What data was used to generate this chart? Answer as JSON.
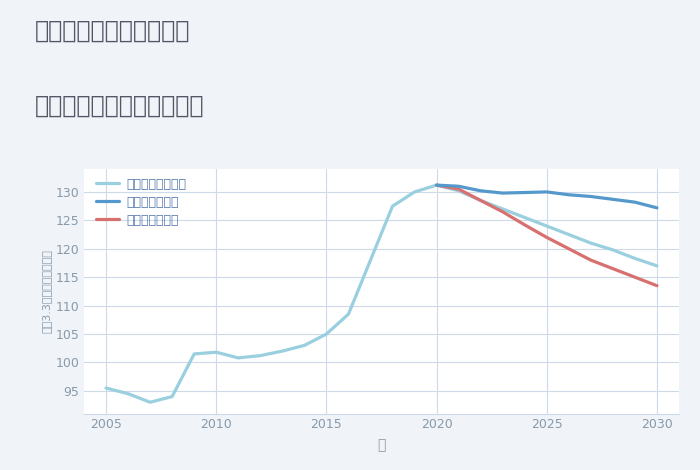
{
  "title_line1": "兵庫県姫路市北新在家の",
  "title_line2": "中古マンションの価格推移",
  "xlabel": "年",
  "ylabel": "坪（3.3㎡）単価（万円）",
  "background_color": "#f0f4f8",
  "plot_bg_color": "#ffffff",
  "xlim": [
    2004,
    2031
  ],
  "ylim": [
    91,
    134
  ],
  "yticks": [
    95,
    100,
    105,
    110,
    115,
    120,
    125,
    130
  ],
  "xticks": [
    2005,
    2010,
    2015,
    2020,
    2025,
    2030
  ],
  "good_scenario": {
    "label": "グッドシナリオ",
    "color": "#5599cc",
    "linewidth": 2.3,
    "years": [
      2020,
      2021,
      2022,
      2023,
      2024,
      2025,
      2026,
      2027,
      2028,
      2029,
      2030
    ],
    "values": [
      131.2,
      131.0,
      130.2,
      129.8,
      129.9,
      130.0,
      129.5,
      129.2,
      128.7,
      128.2,
      127.2
    ]
  },
  "bad_scenario": {
    "label": "バッドシナリオ",
    "color": "#d97070",
    "linewidth": 2.3,
    "years": [
      2020,
      2021,
      2022,
      2023,
      2024,
      2025,
      2026,
      2027,
      2028,
      2029,
      2030
    ],
    "values": [
      131.2,
      130.5,
      128.5,
      126.5,
      124.2,
      122.0,
      120.0,
      118.0,
      116.5,
      115.0,
      113.5
    ]
  },
  "normal_scenario": {
    "label": "ノーマルシナリオ",
    "color": "#9acfdf",
    "linewidth": 2.3,
    "years": [
      2005,
      2006,
      2007,
      2008,
      2009,
      2010,
      2011,
      2012,
      2013,
      2014,
      2015,
      2016,
      2017,
      2018,
      2019,
      2020,
      2021,
      2022,
      2023,
      2024,
      2025,
      2026,
      2027,
      2028,
      2029,
      2030
    ],
    "values": [
      95.5,
      94.5,
      93.0,
      94.0,
      101.5,
      101.8,
      100.8,
      101.2,
      102.0,
      103.0,
      105.0,
      108.5,
      118.0,
      127.5,
      130.0,
      131.2,
      130.2,
      128.5,
      127.0,
      125.5,
      124.0,
      122.5,
      121.0,
      119.8,
      118.3,
      117.0
    ]
  },
  "grid_color": "#cddaea",
  "title_color": "#555566",
  "tick_color": "#8899aa",
  "legend_text_color": "#5577aa"
}
